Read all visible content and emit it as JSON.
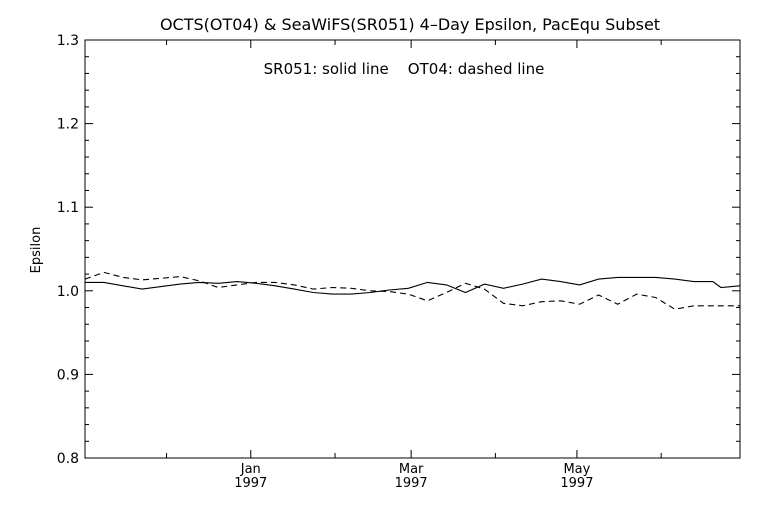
{
  "chart_data": {
    "type": "line",
    "title": "OCTS(OT04) & SeaWiFS(SR051) 4–Day Epsilon, PacEqu Subset",
    "annotation": "SR051: solid line    OT04: dashed line",
    "ylabel": "Epsilon",
    "xlabel": "",
    "ylim": [
      0.8,
      1.3
    ],
    "yticks": [
      0.8,
      0.9,
      1.0,
      1.1,
      1.2,
      1.3
    ],
    "ytick_labels": [
      "0.8",
      "0.9",
      "1.0",
      "1.1",
      "1.2",
      "1.3"
    ],
    "xlim": [
      "1996-11-01",
      "1997-06-30"
    ],
    "xticks_major": [
      {
        "date": "1997-01-01",
        "label1": "Jan",
        "label2": "1997"
      },
      {
        "date": "1997-03-01",
        "label1": "Mar",
        "label2": "1997"
      },
      {
        "date": "1997-05-01",
        "label1": "May",
        "label2": "1997"
      }
    ],
    "xticks_minor": [
      "1996-12-01",
      "1997-02-01",
      "1997-04-01",
      "1997-06-01"
    ],
    "grid": false,
    "series": [
      {
        "name": "SR051",
        "style": "solid",
        "color": "#000000",
        "points": [
          [
            "1996-11-01",
            1.01
          ],
          [
            "1996-11-08",
            1.01
          ],
          [
            "1996-11-15",
            1.006
          ],
          [
            "1996-11-22",
            1.002
          ],
          [
            "1996-11-29",
            1.005
          ],
          [
            "1996-12-06",
            1.008
          ],
          [
            "1996-12-13",
            1.01
          ],
          [
            "1996-12-20",
            1.009
          ],
          [
            "1996-12-27",
            1.011
          ],
          [
            "1997-01-03",
            1.009
          ],
          [
            "1997-01-10",
            1.006
          ],
          [
            "1997-01-17",
            1.002
          ],
          [
            "1997-01-24",
            0.998
          ],
          [
            "1997-01-31",
            0.996
          ],
          [
            "1997-02-07",
            0.996
          ],
          [
            "1997-02-14",
            0.998
          ],
          [
            "1997-02-21",
            1.001
          ],
          [
            "1997-02-28",
            1.003
          ],
          [
            "1997-03-07",
            1.01
          ],
          [
            "1997-03-14",
            1.007
          ],
          [
            "1997-03-21",
            0.998
          ],
          [
            "1997-03-28",
            1.008
          ],
          [
            "1997-04-04",
            1.003
          ],
          [
            "1997-04-11",
            1.008
          ],
          [
            "1997-04-18",
            1.014
          ],
          [
            "1997-04-25",
            1.011
          ],
          [
            "1997-05-02",
            1.007
          ],
          [
            "1997-05-09",
            1.014
          ],
          [
            "1997-05-16",
            1.016
          ],
          [
            "1997-05-23",
            1.016
          ],
          [
            "1997-05-30",
            1.016
          ],
          [
            "1997-06-06",
            1.014
          ],
          [
            "1997-06-13",
            1.011
          ],
          [
            "1997-06-20",
            1.011
          ],
          [
            "1997-06-23",
            1.004
          ],
          [
            "1997-06-30",
            1.006
          ]
        ]
      },
      {
        "name": "OT04",
        "style": "dashed",
        "color": "#000000",
        "points": [
          [
            "1996-11-01",
            1.014
          ],
          [
            "1996-11-08",
            1.022
          ],
          [
            "1996-11-15",
            1.016
          ],
          [
            "1996-11-22",
            1.013
          ],
          [
            "1996-11-29",
            1.015
          ],
          [
            "1996-12-06",
            1.017
          ],
          [
            "1996-12-13",
            1.012
          ],
          [
            "1996-12-20",
            1.004
          ],
          [
            "1996-12-27",
            1.007
          ],
          [
            "1997-01-03",
            1.01
          ],
          [
            "1997-01-10",
            1.01
          ],
          [
            "1997-01-17",
            1.007
          ],
          [
            "1997-01-24",
            1.002
          ],
          [
            "1997-01-31",
            1.004
          ],
          [
            "1997-02-07",
            1.003
          ],
          [
            "1997-02-14",
            1.0
          ],
          [
            "1997-02-21",
            0.999
          ],
          [
            "1997-02-28",
            0.996
          ],
          [
            "1997-03-07",
            0.988
          ],
          [
            "1997-03-14",
            0.998
          ],
          [
            "1997-03-21",
            1.009
          ],
          [
            "1997-03-28",
            1.002
          ],
          [
            "1997-04-04",
            0.985
          ],
          [
            "1997-04-11",
            0.982
          ],
          [
            "1997-04-18",
            0.987
          ],
          [
            "1997-04-25",
            0.988
          ],
          [
            "1997-05-02",
            0.984
          ],
          [
            "1997-05-09",
            0.995
          ],
          [
            "1997-05-16",
            0.984
          ],
          [
            "1997-05-23",
            0.996
          ],
          [
            "1997-05-30",
            0.992
          ],
          [
            "1997-06-06",
            0.978
          ],
          [
            "1997-06-13",
            0.982
          ],
          [
            "1997-06-20",
            0.982
          ],
          [
            "1997-06-30",
            0.982
          ]
        ]
      }
    ]
  }
}
